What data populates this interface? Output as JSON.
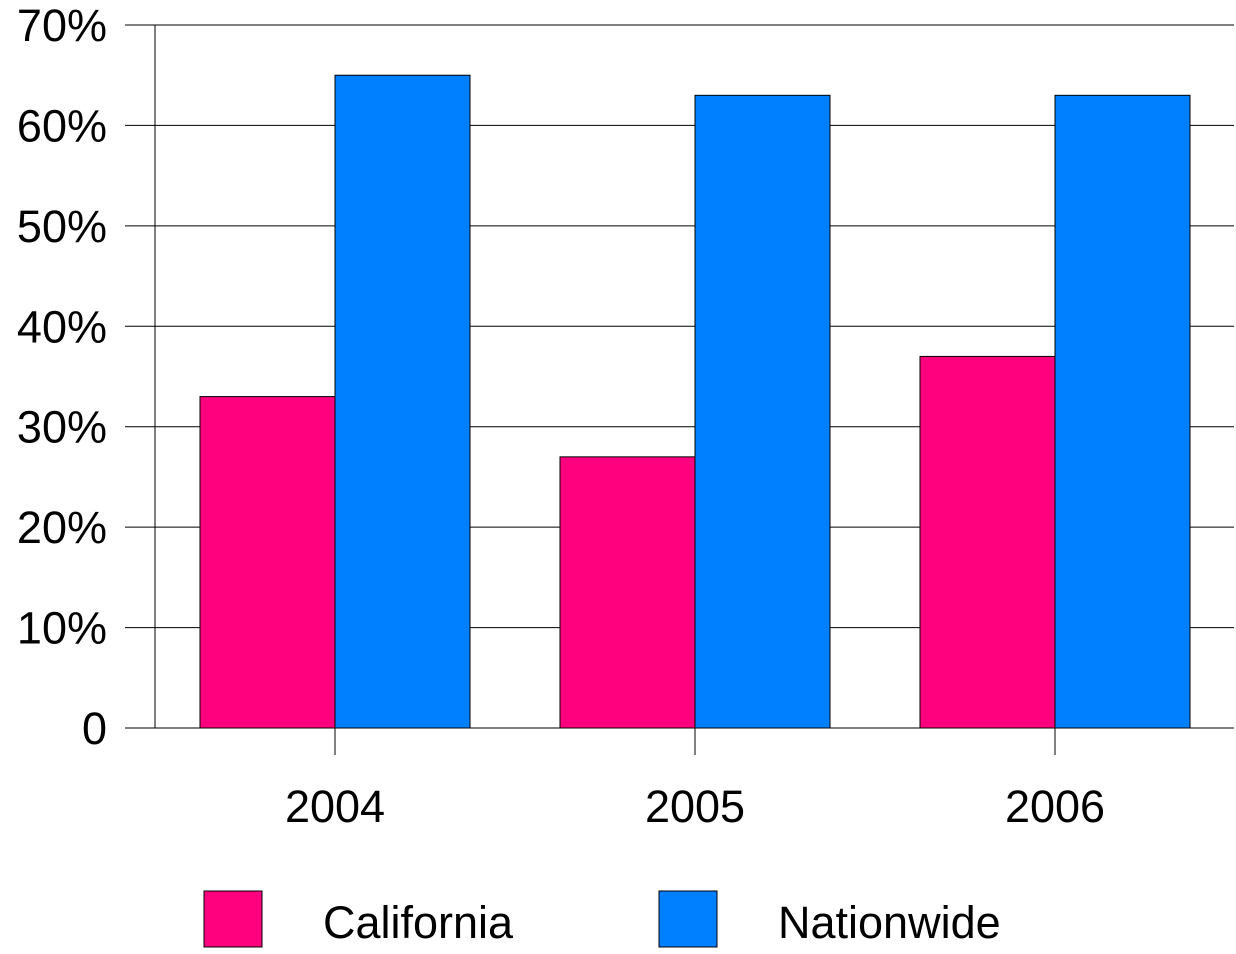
{
  "chart_data": {
    "type": "bar",
    "title": "",
    "xlabel": "",
    "ylabel": "",
    "categories": [
      "2004",
      "2005",
      "2006"
    ],
    "series": [
      {
        "name": "California",
        "values": [
          33,
          27,
          37
        ],
        "color": "#FF007F"
      },
      {
        "name": "Nationwide",
        "values": [
          65,
          63,
          63
        ],
        "color": "#0080FF"
      }
    ],
    "ylim": [
      0,
      70
    ],
    "y_ticks": [
      {
        "value": 0,
        "label": "0"
      },
      {
        "value": 10,
        "label": "10%"
      },
      {
        "value": 20,
        "label": "20%"
      },
      {
        "value": 30,
        "label": "30%"
      },
      {
        "value": 40,
        "label": "40%"
      },
      {
        "value": 50,
        "label": "50%"
      },
      {
        "value": 60,
        "label": "60%"
      },
      {
        "value": 70,
        "label": "70%"
      }
    ],
    "grid": true,
    "legend_position": "bottom"
  }
}
